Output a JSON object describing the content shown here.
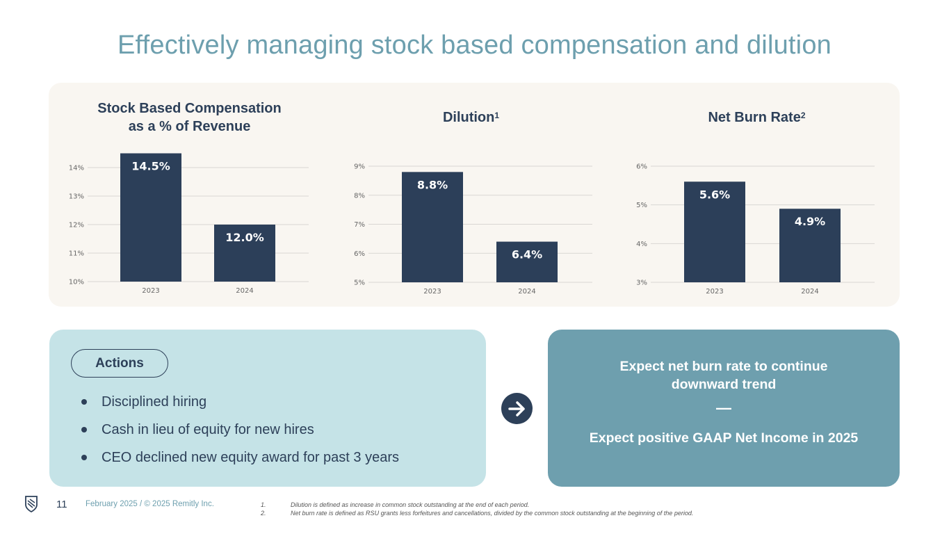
{
  "title": "Effectively managing stock based compensation and dilution",
  "chart_data": [
    {
      "type": "bar",
      "title": "Stock Based Compensation as a % of Revenue",
      "title_lines": [
        "Stock Based Compensation",
        "as a % of Revenue"
      ],
      "categories": [
        "2023",
        "2024"
      ],
      "values": [
        14.5,
        12.0
      ],
      "data_labels": [
        "14.5%",
        "12.0%"
      ],
      "yticks": [
        "10%",
        "11%",
        "12%",
        "13%",
        "14%"
      ],
      "ylim": [
        10,
        14.5
      ],
      "xlabel": "",
      "ylabel": "",
      "color": "#2c3f59"
    },
    {
      "type": "bar",
      "title": "Dilution",
      "title_sup": "1",
      "categories": [
        "2023",
        "2024"
      ],
      "values": [
        8.8,
        6.4
      ],
      "data_labels": [
        "8.8%",
        "6.4%"
      ],
      "yticks": [
        "5%",
        "6%",
        "7%",
        "8%",
        "9%"
      ],
      "ylim": [
        5,
        9
      ],
      "xlabel": "",
      "ylabel": "",
      "color": "#2c3f59"
    },
    {
      "type": "bar",
      "title": "Net Burn Rate",
      "title_sup": "2",
      "categories": [
        "2023",
        "2024"
      ],
      "values": [
        5.6,
        4.9
      ],
      "data_labels": [
        "5.6%",
        "4.9%"
      ],
      "yticks": [
        "3%",
        "4%",
        "5%",
        "6%"
      ],
      "ylim": [
        3,
        6
      ],
      "xlabel": "",
      "ylabel": "",
      "color": "#2c3f59"
    }
  ],
  "actions": {
    "heading": "Actions",
    "items": [
      "Disciplined hiring",
      "Cash in lieu of equity for new hires",
      "CEO declined new equity award for past 3 years"
    ]
  },
  "outlook": {
    "line1a": "Expect net burn rate to continue",
    "line1b": "downward trend",
    "separator": "—",
    "line2": "Expect positive GAAP Net Income in 2025"
  },
  "footer": {
    "page_number": "11",
    "date_copyright": "February 2025 / © 2025 Remitly Inc.",
    "footnotes": [
      {
        "num": "1.",
        "text": "Dilution is defined as increase in common stock outstanding at the end of each period."
      },
      {
        "num": "2.",
        "text": "Net burn rate is defined as RSU grants less forfeitures and cancellations, divided by the common stock outstanding at the beginning of the period."
      }
    ]
  },
  "colors": {
    "accent": "#6d9fae",
    "navy": "#2d4059",
    "panel_bg": "#f9f6f1",
    "actions_bg": "#c5e3e7",
    "outlook_bg": "#6e9fae"
  }
}
